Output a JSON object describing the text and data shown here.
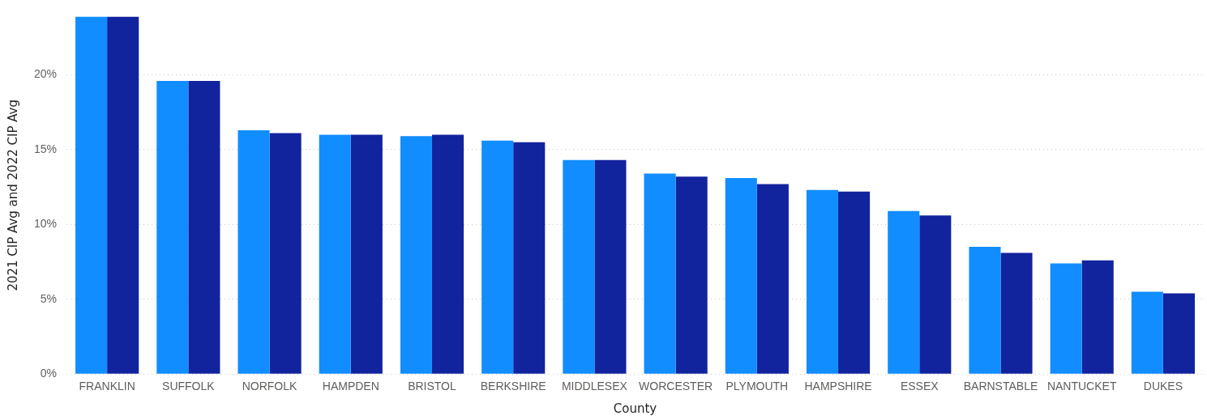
{
  "chart_data": {
    "type": "bar",
    "xlabel": "County",
    "ylabel": "2021 CIP Avg and 2022 CIP Avg",
    "categories": [
      "FRANKLIN",
      "SUFFOLK",
      "NORFOLK",
      "HAMPDEN",
      "BRISTOL",
      "BERKSHIRE",
      "MIDDLESEX",
      "WORCESTER",
      "PLYMOUTH",
      "HAMPSHIRE",
      "ESSEX",
      "BARNSTABLE",
      "NANTUCKET",
      "DUKES"
    ],
    "series": [
      {
        "color": "#118dff",
        "values": [
          23.9,
          19.6,
          16.3,
          16.0,
          15.9,
          15.6,
          14.3,
          13.4,
          13.1,
          12.3,
          10.9,
          8.5,
          7.4,
          5.5
        ]
      },
      {
        "color": "#12239e",
        "values": [
          23.9,
          19.6,
          16.1,
          16.0,
          16.0,
          15.5,
          14.3,
          13.2,
          12.7,
          12.2,
          10.6,
          8.1,
          7.6,
          5.4
        ]
      }
    ],
    "ylim": [
      0,
      23.9
    ],
    "yticks": [
      {
        "value": 0,
        "label": "0%"
      },
      {
        "value": 5,
        "label": "5%"
      },
      {
        "value": 10,
        "label": "10%"
      },
      {
        "value": 15,
        "label": "15%"
      },
      {
        "value": 20,
        "label": "20%"
      }
    ],
    "grid": "y",
    "legend": false
  }
}
